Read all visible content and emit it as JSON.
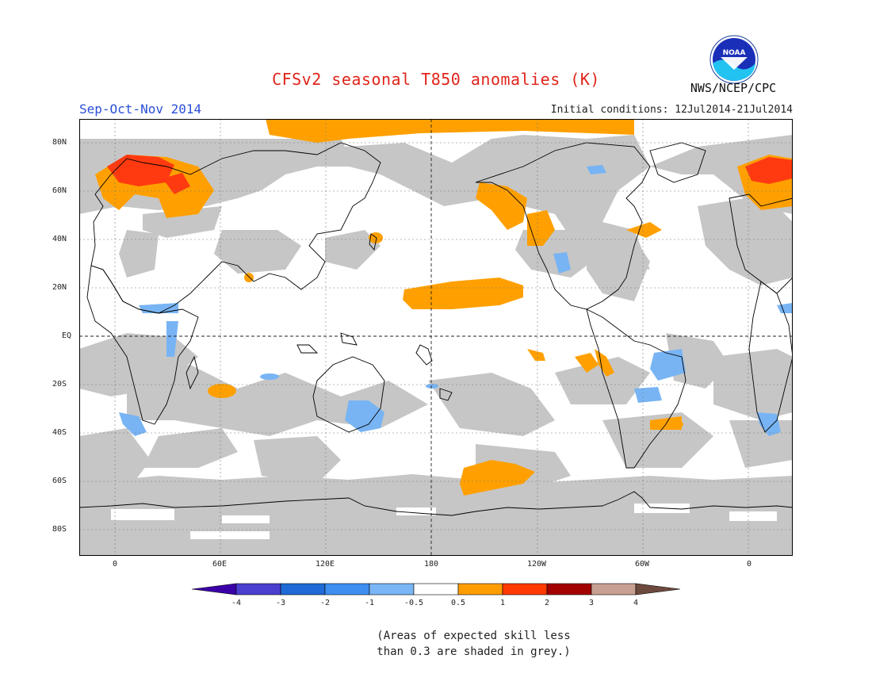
{
  "title": "CFSv2 seasonal T850 anomalies (K)",
  "season": "Sep-Oct-Nov 2014",
  "initial_conditions": "Initial conditions: 12Jul2014-21Jul2014",
  "agency": "NWS/NCEP/CPC",
  "logo_text": "NOAA",
  "lat_labels": [
    "80N",
    "60N",
    "40N",
    "20N",
    "EQ",
    "20S",
    "40S",
    "60S",
    "80S"
  ],
  "lon_labels": [
    "0",
    "60E",
    "120E",
    "180",
    "120W",
    "60W",
    "0"
  ],
  "colorbar": {
    "labels": [
      "-4",
      "-3",
      "-2",
      "-1",
      "-0.5",
      "0.5",
      "1",
      "2",
      "3",
      "4"
    ],
    "colors": [
      "#3b00a8",
      "#4b3fd0",
      "#1f6ad6",
      "#3d8ff0",
      "#7ab6f5",
      "#ffffff",
      "#ff9d00",
      "#ff3a00",
      "#a30000",
      "#c8a092",
      "#6e4a3e"
    ]
  },
  "note": [
    "(Areas of expected skill less",
    "than 0.3 are shaded in grey.)"
  ],
  "colors": {
    "low_skill_grey": "#c6c6c6",
    "warm_anomaly": "#ffa000",
    "strong_warm": "#ff3a10",
    "cool_anomaly": "#78b4f4",
    "title_red": "#e0241b",
    "season_blue": "#2a4fd6"
  }
}
